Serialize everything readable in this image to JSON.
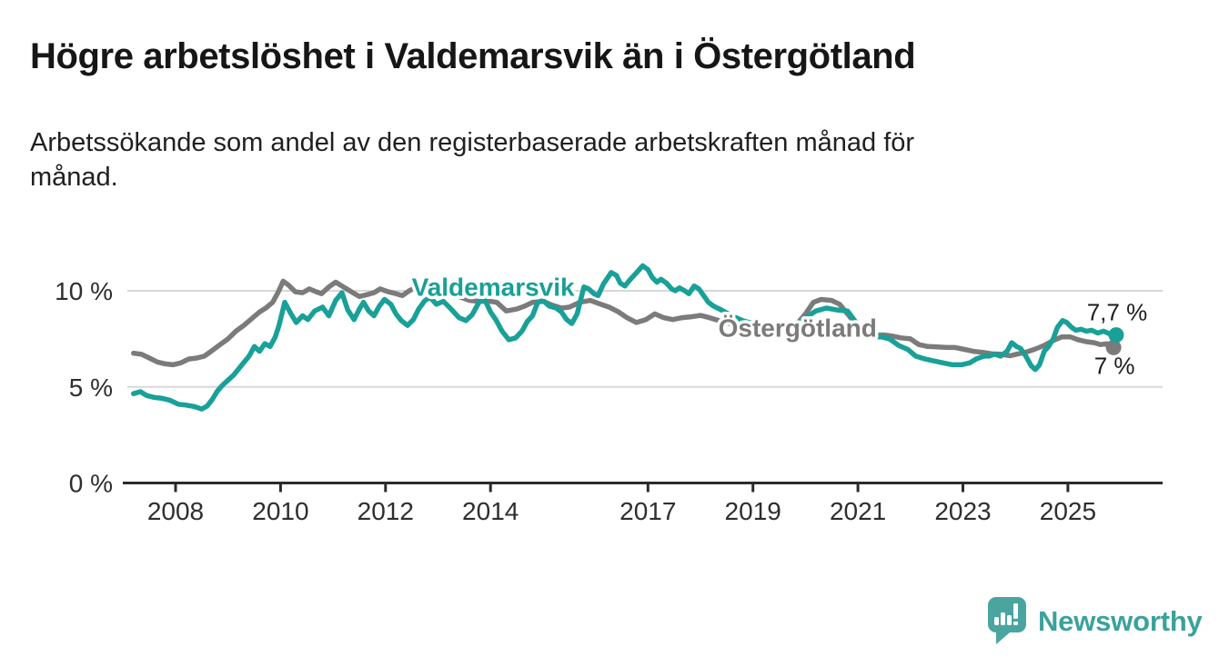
{
  "header": {
    "title": "Högre arbetslöshet i Valdemarsvik än i Östergötland",
    "subtitle": "Arbetssökande som andel av den registerbaserade arbetskraften månad för\nmånad."
  },
  "colors": {
    "valdemarsvik_teal": "#19a098",
    "ostergotland_gray": "#7b7b7b",
    "grid": "#d8d8d8",
    "axis": "#2b2b2b",
    "tick_text": "#2e2e2e",
    "annotation_text": "#1c1c1c",
    "logo_teal": "#4aa5a0",
    "logo_text_teal": "#3aa29b"
  },
  "chart_data": {
    "type": "line",
    "title": "",
    "xlabel": "",
    "ylabel": "",
    "grid": "horizontal",
    "legend_position": "inline-labels",
    "x_range": [
      2007.0,
      2026.8
    ],
    "ylim": [
      0,
      11.6
    ],
    "y_ticks": [
      {
        "value": 0,
        "label": "0 %"
      },
      {
        "value": 5,
        "label": "5 %"
      },
      {
        "value": 10,
        "label": "10 %"
      }
    ],
    "x_ticks": [
      {
        "value": 2008,
        "label": "2008"
      },
      {
        "value": 2010,
        "label": "2010"
      },
      {
        "value": 2012,
        "label": "2012"
      },
      {
        "value": 2014,
        "label": "2014"
      },
      {
        "value": 2017,
        "label": "2017"
      },
      {
        "value": 2019,
        "label": "2019"
      },
      {
        "value": 2021,
        "label": "2021"
      },
      {
        "value": 2023,
        "label": "2023"
      },
      {
        "value": 2025,
        "label": "2025"
      }
    ],
    "series": [
      {
        "name": "Östergötland",
        "color": "#7b7b7b",
        "label_anchor": {
          "year": 2019.85,
          "value": 7.62
        },
        "end_value_label": "7 %",
        "points": [
          [
            2007.2,
            6.75
          ],
          [
            2007.35,
            6.7
          ],
          [
            2007.5,
            6.5
          ],
          [
            2007.65,
            6.3
          ],
          [
            2007.8,
            6.2
          ],
          [
            2007.95,
            6.15
          ],
          [
            2008.1,
            6.25
          ],
          [
            2008.25,
            6.45
          ],
          [
            2008.4,
            6.5
          ],
          [
            2008.55,
            6.6
          ],
          [
            2008.7,
            6.9
          ],
          [
            2008.85,
            7.2
          ],
          [
            2009.0,
            7.5
          ],
          [
            2009.15,
            7.9
          ],
          [
            2009.3,
            8.2
          ],
          [
            2009.45,
            8.55
          ],
          [
            2009.6,
            8.9
          ],
          [
            2009.72,
            9.1
          ],
          [
            2009.85,
            9.4
          ],
          [
            2009.95,
            9.9
          ],
          [
            2010.05,
            10.5
          ],
          [
            2010.15,
            10.3
          ],
          [
            2010.28,
            9.95
          ],
          [
            2010.42,
            9.9
          ],
          [
            2010.55,
            10.1
          ],
          [
            2010.68,
            9.95
          ],
          [
            2010.78,
            9.85
          ],
          [
            2010.92,
            10.2
          ],
          [
            2011.05,
            10.45
          ],
          [
            2011.2,
            10.2
          ],
          [
            2011.35,
            9.95
          ],
          [
            2011.5,
            9.7
          ],
          [
            2011.65,
            9.8
          ],
          [
            2011.78,
            9.9
          ],
          [
            2011.9,
            10.1
          ],
          [
            2012.05,
            9.95
          ],
          [
            2012.2,
            9.85
          ],
          [
            2012.32,
            9.75
          ],
          [
            2012.45,
            10.0
          ],
          [
            2012.6,
            10.2
          ],
          [
            2012.75,
            10.1
          ],
          [
            2012.9,
            10.05
          ],
          [
            2013.05,
            10.0
          ],
          [
            2013.25,
            9.85
          ],
          [
            2013.45,
            9.65
          ],
          [
            2013.6,
            9.5
          ],
          [
            2013.8,
            9.45
          ],
          [
            2014.0,
            9.45
          ],
          [
            2014.12,
            9.4
          ],
          [
            2014.3,
            8.95
          ],
          [
            2014.5,
            9.05
          ],
          [
            2014.65,
            9.2
          ],
          [
            2014.8,
            9.4
          ],
          [
            2015.0,
            9.45
          ],
          [
            2015.18,
            9.25
          ],
          [
            2015.35,
            9.1
          ],
          [
            2015.5,
            9.15
          ],
          [
            2015.7,
            9.4
          ],
          [
            2015.9,
            9.5
          ],
          [
            2016.1,
            9.3
          ],
          [
            2016.26,
            9.15
          ],
          [
            2016.44,
            8.9
          ],
          [
            2016.6,
            8.6
          ],
          [
            2016.78,
            8.35
          ],
          [
            2016.96,
            8.5
          ],
          [
            2017.13,
            8.8
          ],
          [
            2017.3,
            8.6
          ],
          [
            2017.47,
            8.5
          ],
          [
            2017.65,
            8.6
          ],
          [
            2017.82,
            8.65
          ],
          [
            2018.0,
            8.72
          ],
          [
            2018.17,
            8.6
          ],
          [
            2018.35,
            8.45
          ],
          [
            2018.55,
            8.3
          ],
          [
            2018.8,
            8.15
          ],
          [
            2019.05,
            8.0
          ],
          [
            2019.3,
            7.9
          ],
          [
            2019.55,
            7.95
          ],
          [
            2019.8,
            8.15
          ],
          [
            2020.0,
            8.8
          ],
          [
            2020.15,
            9.4
          ],
          [
            2020.3,
            9.55
          ],
          [
            2020.5,
            9.5
          ],
          [
            2020.65,
            9.3
          ],
          [
            2020.8,
            8.8
          ],
          [
            2020.95,
            8.3
          ],
          [
            2021.1,
            7.8
          ],
          [
            2021.3,
            7.7
          ],
          [
            2021.5,
            7.7
          ],
          [
            2021.64,
            7.65
          ],
          [
            2021.82,
            7.55
          ],
          [
            2022.0,
            7.5
          ],
          [
            2022.16,
            7.2
          ],
          [
            2022.33,
            7.1
          ],
          [
            2022.51,
            7.08
          ],
          [
            2022.7,
            7.05
          ],
          [
            2022.85,
            7.05
          ],
          [
            2023.03,
            6.95
          ],
          [
            2023.2,
            6.85
          ],
          [
            2023.37,
            6.8
          ],
          [
            2023.55,
            6.72
          ],
          [
            2023.72,
            6.7
          ],
          [
            2023.9,
            6.62
          ],
          [
            2024.02,
            6.7
          ],
          [
            2024.19,
            6.8
          ],
          [
            2024.36,
            6.95
          ],
          [
            2024.54,
            7.15
          ],
          [
            2024.71,
            7.4
          ],
          [
            2024.88,
            7.6
          ],
          [
            2025.05,
            7.6
          ],
          [
            2025.2,
            7.45
          ],
          [
            2025.35,
            7.35
          ],
          [
            2025.5,
            7.3
          ],
          [
            2025.62,
            7.2
          ],
          [
            2025.74,
            7.25
          ],
          [
            2025.87,
            7.05
          ]
        ]
      },
      {
        "name": "Valdemarsvik",
        "color": "#19a098",
        "label_anchor": {
          "year": 2014.05,
          "value": 9.75
        },
        "end_value_label": "7,7 %",
        "points": [
          [
            2007.2,
            4.65
          ],
          [
            2007.33,
            4.75
          ],
          [
            2007.45,
            4.55
          ],
          [
            2007.6,
            4.45
          ],
          [
            2007.75,
            4.4
          ],
          [
            2007.9,
            4.3
          ],
          [
            2008.05,
            4.1
          ],
          [
            2008.2,
            4.05
          ],
          [
            2008.35,
            3.98
          ],
          [
            2008.5,
            3.85
          ],
          [
            2008.6,
            4.0
          ],
          [
            2008.7,
            4.35
          ],
          [
            2008.8,
            4.8
          ],
          [
            2008.9,
            5.1
          ],
          [
            2009.0,
            5.35
          ],
          [
            2009.1,
            5.6
          ],
          [
            2009.25,
            6.1
          ],
          [
            2009.4,
            6.6
          ],
          [
            2009.5,
            7.1
          ],
          [
            2009.6,
            6.85
          ],
          [
            2009.7,
            7.25
          ],
          [
            2009.8,
            7.1
          ],
          [
            2009.9,
            7.6
          ],
          [
            2009.97,
            8.2
          ],
          [
            2010.08,
            9.4
          ],
          [
            2010.2,
            8.8
          ],
          [
            2010.3,
            8.35
          ],
          [
            2010.42,
            8.7
          ],
          [
            2010.52,
            8.5
          ],
          [
            2010.65,
            8.95
          ],
          [
            2010.8,
            9.15
          ],
          [
            2010.92,
            8.7
          ],
          [
            2011.05,
            9.5
          ],
          [
            2011.17,
            9.9
          ],
          [
            2011.28,
            9.0
          ],
          [
            2011.4,
            8.5
          ],
          [
            2011.5,
            9.05
          ],
          [
            2011.58,
            9.4
          ],
          [
            2011.68,
            8.95
          ],
          [
            2011.78,
            8.7
          ],
          [
            2011.88,
            9.2
          ],
          [
            2011.98,
            9.55
          ],
          [
            2012.1,
            9.3
          ],
          [
            2012.2,
            8.8
          ],
          [
            2012.3,
            8.45
          ],
          [
            2012.42,
            8.2
          ],
          [
            2012.53,
            8.5
          ],
          [
            2012.63,
            9.05
          ],
          [
            2012.75,
            9.5
          ],
          [
            2012.85,
            9.65
          ],
          [
            2012.97,
            9.3
          ],
          [
            2013.1,
            9.45
          ],
          [
            2013.25,
            9.05
          ],
          [
            2013.4,
            8.6
          ],
          [
            2013.53,
            8.45
          ],
          [
            2013.65,
            8.75
          ],
          [
            2013.78,
            9.4
          ],
          [
            2013.88,
            9.6
          ],
          [
            2014.0,
            8.9
          ],
          [
            2014.1,
            8.5
          ],
          [
            2014.22,
            7.9
          ],
          [
            2014.35,
            7.45
          ],
          [
            2014.48,
            7.55
          ],
          [
            2014.6,
            7.9
          ],
          [
            2014.7,
            8.4
          ],
          [
            2014.8,
            8.7
          ],
          [
            2014.9,
            9.4
          ],
          [
            2015.0,
            9.5
          ],
          [
            2015.12,
            9.2
          ],
          [
            2015.25,
            9.1
          ],
          [
            2015.35,
            8.9
          ],
          [
            2015.45,
            8.5
          ],
          [
            2015.55,
            8.3
          ],
          [
            2015.65,
            8.8
          ],
          [
            2015.78,
            10.2
          ],
          [
            2015.87,
            10.1
          ],
          [
            2015.97,
            9.85
          ],
          [
            2016.05,
            9.75
          ],
          [
            2016.15,
            10.35
          ],
          [
            2016.3,
            10.95
          ],
          [
            2016.4,
            10.8
          ],
          [
            2016.47,
            10.4
          ],
          [
            2016.56,
            10.25
          ],
          [
            2016.65,
            10.55
          ],
          [
            2016.75,
            10.85
          ],
          [
            2016.9,
            11.3
          ],
          [
            2017.0,
            11.1
          ],
          [
            2017.08,
            10.7
          ],
          [
            2017.17,
            10.45
          ],
          [
            2017.25,
            10.6
          ],
          [
            2017.35,
            10.4
          ],
          [
            2017.45,
            10.1
          ],
          [
            2017.52,
            10.0
          ],
          [
            2017.6,
            10.15
          ],
          [
            2017.7,
            10.0
          ],
          [
            2017.78,
            9.85
          ],
          [
            2017.88,
            10.25
          ],
          [
            2017.97,
            10.1
          ],
          [
            2018.06,
            9.75
          ],
          [
            2018.15,
            9.4
          ],
          [
            2018.25,
            9.2
          ],
          [
            2018.4,
            9.0
          ],
          [
            2018.6,
            8.7
          ],
          [
            2018.8,
            8.45
          ],
          [
            2019.0,
            8.3
          ],
          [
            2019.2,
            8.1
          ],
          [
            2019.4,
            8.0
          ],
          [
            2019.6,
            8.05
          ],
          [
            2019.8,
            8.2
          ],
          [
            2020.0,
            8.6
          ],
          [
            2020.2,
            8.95
          ],
          [
            2020.4,
            9.1
          ],
          [
            2020.6,
            9.0
          ],
          [
            2020.8,
            8.95
          ],
          [
            2020.95,
            8.4
          ],
          [
            2021.1,
            7.9
          ],
          [
            2021.25,
            7.6
          ],
          [
            2021.45,
            7.6
          ],
          [
            2021.6,
            7.5
          ],
          [
            2021.78,
            7.15
          ],
          [
            2021.95,
            6.95
          ],
          [
            2022.1,
            6.6
          ],
          [
            2022.28,
            6.45
          ],
          [
            2022.45,
            6.35
          ],
          [
            2022.62,
            6.25
          ],
          [
            2022.8,
            6.15
          ],
          [
            2022.97,
            6.15
          ],
          [
            2023.13,
            6.25
          ],
          [
            2023.25,
            6.45
          ],
          [
            2023.4,
            6.6
          ],
          [
            2023.5,
            6.6
          ],
          [
            2023.6,
            6.7
          ],
          [
            2023.72,
            6.6
          ],
          [
            2023.84,
            6.85
          ],
          [
            2023.93,
            7.3
          ],
          [
            2024.02,
            7.1
          ],
          [
            2024.1,
            7.0
          ],
          [
            2024.2,
            6.6
          ],
          [
            2024.3,
            6.1
          ],
          [
            2024.38,
            5.9
          ],
          [
            2024.46,
            6.15
          ],
          [
            2024.55,
            6.85
          ],
          [
            2024.63,
            7.1
          ],
          [
            2024.72,
            7.5
          ],
          [
            2024.8,
            8.1
          ],
          [
            2024.9,
            8.45
          ],
          [
            2024.98,
            8.35
          ],
          [
            2025.07,
            8.1
          ],
          [
            2025.15,
            7.95
          ],
          [
            2025.25,
            8.0
          ],
          [
            2025.35,
            7.9
          ],
          [
            2025.45,
            7.95
          ],
          [
            2025.57,
            7.8
          ],
          [
            2025.68,
            7.9
          ],
          [
            2025.8,
            7.75
          ],
          [
            2025.92,
            7.7
          ]
        ]
      }
    ]
  },
  "branding": {
    "logo_text": "Newsworthy"
  }
}
